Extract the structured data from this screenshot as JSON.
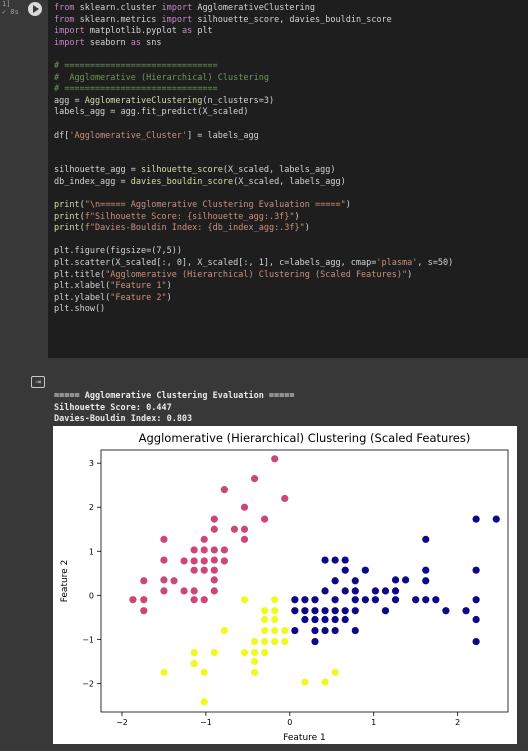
{
  "cell": {
    "gutter_label": "1]\n✓ 0s",
    "code_lines": [
      "from sklearn.cluster import AgglomerativeClustering",
      "from sklearn.metrics import silhouette_score, davies_bouldin_score",
      "import matplotlib.pyplot as plt",
      "import seaborn as sns",
      "",
      "# ==============================",
      "#  Agglomerative (Hierarchical) Clustering",
      "# ==============================",
      "agg = AgglomerativeClustering(n_clusters=3)",
      "labels_agg = agg.fit_predict(X_scaled)",
      "",
      "df['Agglomerative_Cluster'] = labels_agg",
      "",
      "",
      "silhouette_agg = silhouette_score(X_scaled, labels_agg)",
      "db_index_agg = davies_bouldin_score(X_scaled, labels_agg)",
      "",
      "print(\"\\n===== Agglomerative Clustering Evaluation =====\")",
      "print(f\"Silhouette Score: {silhouette_agg:.3f}\")",
      "print(f\"Davies-Bouldin Index: {db_index_agg:.3f}\")",
      "",
      "plt.figure(figsize=(7,5))",
      "plt.scatter(X_scaled[:, 0], X_scaled[:, 1], c=labels_agg, cmap='plasma', s=50)",
      "plt.title(\"Agglomerative (Hierarchical) Clustering (Scaled Features)\")",
      "plt.xlabel(\"Feature 1\")",
      "plt.ylabel(\"Feature 2\")",
      "plt.show()"
    ]
  },
  "output": {
    "icon": "output-toggle-icon",
    "lines": [
      "===== Agglomerative Clustering Evaluation =====",
      "Silhouette Score: 0.447",
      "Davies-Bouldin Index: 0.803"
    ]
  },
  "chart_data": {
    "type": "scatter",
    "title": "Agglomerative (Hierarchical) Clustering (Scaled Features)",
    "xlabel": "Feature 1",
    "ylabel": "Feature 2",
    "xlim": [
      -2.25,
      2.6
    ],
    "ylim": [
      -2.65,
      3.3
    ],
    "xticks": [
      -2,
      -1,
      0,
      1,
      2
    ],
    "yticks": [
      -2,
      -1,
      0,
      1,
      2,
      3
    ],
    "grid": false,
    "colors": {
      "0": "#0d0887",
      "1": "#cc4778",
      "2": "#f0f921"
    },
    "series": [
      {
        "cluster": 1,
        "points": [
          [
            -1.87,
            -0.1
          ],
          [
            -1.74,
            -0.1
          ],
          [
            -1.74,
            -0.35
          ],
          [
            -1.74,
            0.33
          ],
          [
            -1.5,
            0.1
          ],
          [
            -1.5,
            0.35
          ],
          [
            -1.5,
            0.8
          ],
          [
            -1.5,
            1.27
          ],
          [
            -1.38,
            0.33
          ],
          [
            -1.26,
            0.1
          ],
          [
            -1.26,
            0.78
          ],
          [
            -1.14,
            -0.1
          ],
          [
            -1.14,
            0.1
          ],
          [
            -1.14,
            0.57
          ],
          [
            -1.14,
            0.78
          ],
          [
            -1.14,
            1.03
          ],
          [
            -1.02,
            -0.1
          ],
          [
            -1.02,
            1.03
          ],
          [
            -1.02,
            0.78
          ],
          [
            -1.02,
            1.27
          ],
          [
            -1.02,
            0.57
          ],
          [
            -0.9,
            0.35
          ],
          [
            -0.9,
            0.57
          ],
          [
            -0.9,
            0.8
          ],
          [
            -0.9,
            1.03
          ],
          [
            -0.9,
            1.5
          ],
          [
            -0.9,
            1.73
          ],
          [
            -0.9,
            0.1
          ],
          [
            -0.78,
            0.78
          ],
          [
            -0.78,
            1.03
          ],
          [
            -0.78,
            2.4
          ],
          [
            -0.66,
            1.5
          ],
          [
            -0.54,
            1.5
          ],
          [
            -0.54,
            1.27
          ],
          [
            -0.54,
            2.0
          ],
          [
            -0.42,
            2.65
          ],
          [
            -0.3,
            1.73
          ],
          [
            -0.18,
            3.1
          ],
          [
            -0.06,
            2.2
          ]
        ]
      },
      {
        "cluster": 2,
        "points": [
          [
            -1.5,
            -1.75
          ],
          [
            -1.14,
            -1.3
          ],
          [
            -1.14,
            -1.55
          ],
          [
            -1.02,
            -1.75
          ],
          [
            -1.02,
            -2.42
          ],
          [
            -0.9,
            -1.3
          ],
          [
            -0.78,
            -0.8
          ],
          [
            -0.54,
            -0.1
          ],
          [
            -0.54,
            -1.3
          ],
          [
            -0.42,
            -1.05
          ],
          [
            -0.42,
            -1.3
          ],
          [
            -0.42,
            -1.5
          ],
          [
            -0.42,
            -1.75
          ],
          [
            -0.3,
            -0.35
          ],
          [
            -0.3,
            -0.55
          ],
          [
            -0.3,
            -0.8
          ],
          [
            -0.3,
            -1.05
          ],
          [
            -0.3,
            -1.3
          ],
          [
            -0.18,
            -0.1
          ],
          [
            -0.18,
            -0.35
          ],
          [
            -0.18,
            -0.55
          ],
          [
            -0.18,
            -0.8
          ],
          [
            -0.18,
            -1.05
          ],
          [
            -0.06,
            -0.8
          ],
          [
            -0.06,
            -1.05
          ],
          [
            0.18,
            -1.97
          ],
          [
            0.42,
            -1.97
          ],
          [
            0.54,
            -1.75
          ]
        ]
      },
      {
        "cluster": 0,
        "points": [
          [
            0.06,
            -0.1
          ],
          [
            0.06,
            -0.35
          ],
          [
            0.06,
            -0.8
          ],
          [
            0.18,
            -0.1
          ],
          [
            0.18,
            -0.35
          ],
          [
            0.18,
            -0.55
          ],
          [
            0.3,
            -0.1
          ],
          [
            0.3,
            -0.35
          ],
          [
            0.3,
            -0.55
          ],
          [
            0.3,
            -0.8
          ],
          [
            0.3,
            -1.05
          ],
          [
            0.42,
            0.8
          ],
          [
            0.42,
            0.1
          ],
          [
            0.42,
            -0.35
          ],
          [
            0.42,
            -0.55
          ],
          [
            0.42,
            -0.8
          ],
          [
            0.54,
            0.8
          ],
          [
            0.54,
            0.33
          ],
          [
            0.54,
            -0.1
          ],
          [
            0.54,
            -0.35
          ],
          [
            0.54,
            -0.55
          ],
          [
            0.54,
            -0.8
          ],
          [
            0.66,
            0.8
          ],
          [
            0.66,
            0.57
          ],
          [
            0.66,
            0.1
          ],
          [
            0.66,
            -0.35
          ],
          [
            0.66,
            -0.55
          ],
          [
            0.78,
            -0.1
          ],
          [
            0.78,
            -0.35
          ],
          [
            0.78,
            0.33
          ],
          [
            0.78,
            0.1
          ],
          [
            0.78,
            -0.8
          ],
          [
            0.9,
            0.57
          ],
          [
            0.9,
            -0.1
          ],
          [
            1.02,
            -0.1
          ],
          [
            1.02,
            0.1
          ],
          [
            1.14,
            0.1
          ],
          [
            1.14,
            -0.35
          ],
          [
            1.26,
            0.35
          ],
          [
            1.26,
            0.1
          ],
          [
            1.26,
            -0.1
          ],
          [
            1.38,
            0.35
          ],
          [
            1.5,
            -0.1
          ],
          [
            1.62,
            -0.1
          ],
          [
            1.62,
            0.33
          ],
          [
            1.62,
            0.57
          ],
          [
            1.62,
            1.27
          ],
          [
            1.74,
            -0.1
          ],
          [
            1.86,
            -0.35
          ],
          [
            2.1,
            -0.35
          ],
          [
            2.22,
            0.57
          ],
          [
            2.22,
            -0.1
          ],
          [
            2.22,
            -0.55
          ],
          [
            2.22,
            -1.05
          ],
          [
            2.22,
            1.73
          ],
          [
            2.46,
            1.73
          ]
        ]
      }
    ]
  }
}
